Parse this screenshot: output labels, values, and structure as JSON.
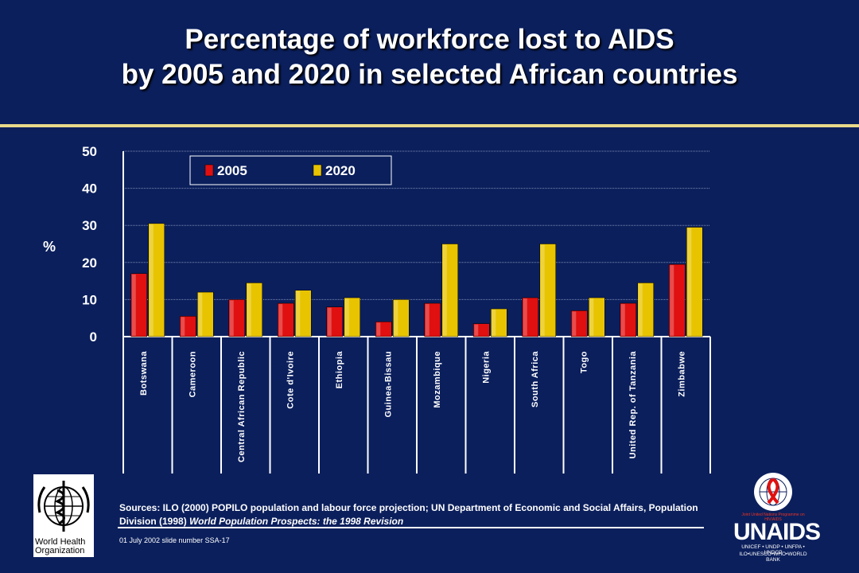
{
  "title_line1": "Percentage of workforce lost to AIDS",
  "title_line2": "by 2005 and 2020 in selected African countries",
  "chart_data": {
    "type": "bar",
    "ylabel": "%",
    "ylim": [
      0,
      50
    ],
    "yticks": [
      "0",
      "10",
      "20",
      "30",
      "40",
      "50"
    ],
    "grid": true,
    "legend_position": "top-left",
    "categories": [
      "Botswana",
      "Cameroon",
      "Central African Republic",
      "Cote d'Ivoire",
      "Ethiopia",
      "Guinea-Bissau",
      "Mozambique",
      "Nigeria",
      "South Africa",
      "Togo",
      "United Rep. of Tanzania",
      "Zimbabwe"
    ],
    "series": [
      {
        "name": "2005",
        "color": "#e01010",
        "values": [
          17,
          5.5,
          10,
          9,
          8,
          4,
          9,
          3.5,
          10.5,
          7,
          9,
          19.5
        ]
      },
      {
        "name": "2020",
        "color": "#e8c400",
        "values": [
          30.5,
          12,
          14.5,
          12.5,
          10.5,
          10,
          25,
          7.5,
          25,
          10.5,
          14.5,
          29.5
        ]
      }
    ]
  },
  "sources": {
    "text": "Sources:  ILO (2000) POPILO population and labour force projection;  UN Department of Economic and Social Affairs, Population Division (1998) ",
    "italic": "World Population Prospects: the 1998 Revision"
  },
  "slide_number": "01 July 2002 slide number SSA-17",
  "who_logo_text": "World Health Organization",
  "unaids": {
    "word": "UNAIDS",
    "tagline": "Joint United Nations Programme on HIV/AIDS",
    "sub1": "UNICEF • UNDP • UNFPA • UNDCP",
    "sub2": "ILO•UNESCO•WHO•WORLD BANK"
  }
}
